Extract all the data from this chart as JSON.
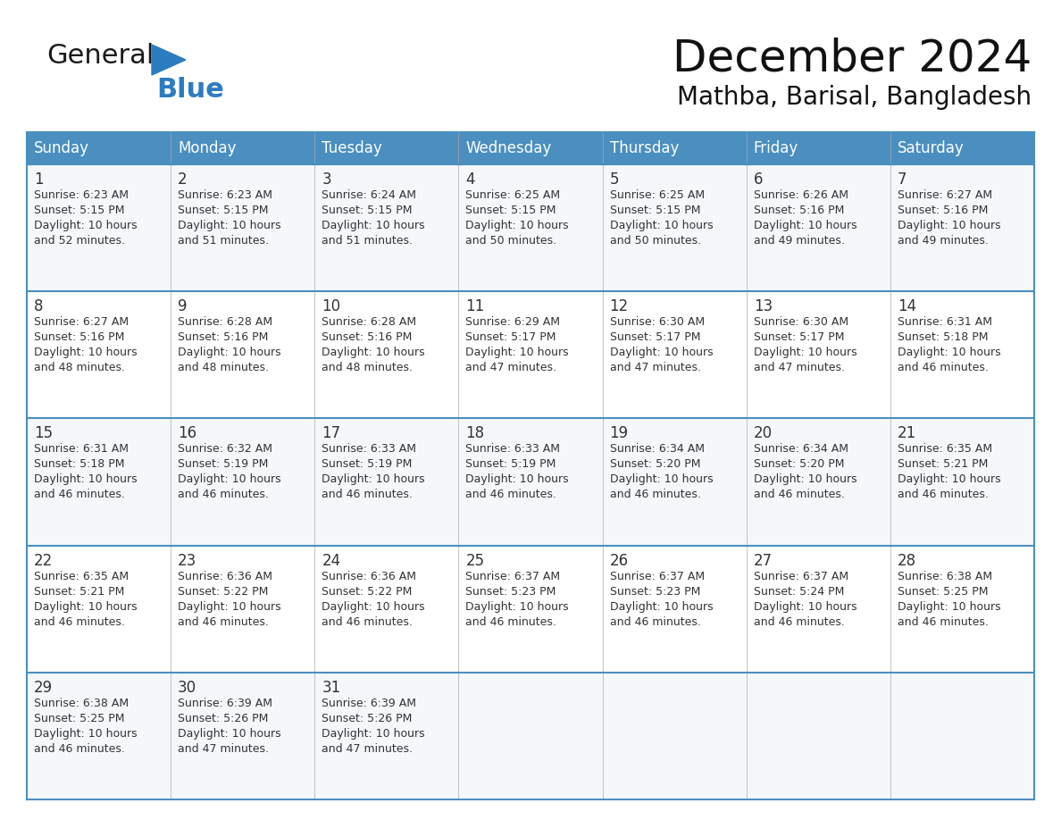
{
  "title": "December 2024",
  "subtitle": "Mathba, Barisal, Bangladesh",
  "header_bg": "#4a8fc0",
  "header_text": "#ffffff",
  "cell_border": "#4a8fc0",
  "day_text_color": "#333333",
  "detail_text_color": "#333333",
  "row_alt_bg": "#f0f4f8",
  "days_of_week": [
    "Sunday",
    "Monday",
    "Tuesday",
    "Wednesday",
    "Thursday",
    "Friday",
    "Saturday"
  ],
  "weeks": [
    [
      {
        "day": "1",
        "sunrise": "6:23 AM",
        "sunset": "5:15 PM",
        "daylight_h": "10 hours",
        "daylight_m": "and 52 minutes."
      },
      {
        "day": "2",
        "sunrise": "6:23 AM",
        "sunset": "5:15 PM",
        "daylight_h": "10 hours",
        "daylight_m": "and 51 minutes."
      },
      {
        "day": "3",
        "sunrise": "6:24 AM",
        "sunset": "5:15 PM",
        "daylight_h": "10 hours",
        "daylight_m": "and 51 minutes."
      },
      {
        "day": "4",
        "sunrise": "6:25 AM",
        "sunset": "5:15 PM",
        "daylight_h": "10 hours",
        "daylight_m": "and 50 minutes."
      },
      {
        "day": "5",
        "sunrise": "6:25 AM",
        "sunset": "5:15 PM",
        "daylight_h": "10 hours",
        "daylight_m": "and 50 minutes."
      },
      {
        "day": "6",
        "sunrise": "6:26 AM",
        "sunset": "5:16 PM",
        "daylight_h": "10 hours",
        "daylight_m": "and 49 minutes."
      },
      {
        "day": "7",
        "sunrise": "6:27 AM",
        "sunset": "5:16 PM",
        "daylight_h": "10 hours",
        "daylight_m": "and 49 minutes."
      }
    ],
    [
      {
        "day": "8",
        "sunrise": "6:27 AM",
        "sunset": "5:16 PM",
        "daylight_h": "10 hours",
        "daylight_m": "and 48 minutes."
      },
      {
        "day": "9",
        "sunrise": "6:28 AM",
        "sunset": "5:16 PM",
        "daylight_h": "10 hours",
        "daylight_m": "and 48 minutes."
      },
      {
        "day": "10",
        "sunrise": "6:28 AM",
        "sunset": "5:16 PM",
        "daylight_h": "10 hours",
        "daylight_m": "and 48 minutes."
      },
      {
        "day": "11",
        "sunrise": "6:29 AM",
        "sunset": "5:17 PM",
        "daylight_h": "10 hours",
        "daylight_m": "and 47 minutes."
      },
      {
        "day": "12",
        "sunrise": "6:30 AM",
        "sunset": "5:17 PM",
        "daylight_h": "10 hours",
        "daylight_m": "and 47 minutes."
      },
      {
        "day": "13",
        "sunrise": "6:30 AM",
        "sunset": "5:17 PM",
        "daylight_h": "10 hours",
        "daylight_m": "and 47 minutes."
      },
      {
        "day": "14",
        "sunrise": "6:31 AM",
        "sunset": "5:18 PM",
        "daylight_h": "10 hours",
        "daylight_m": "and 46 minutes."
      }
    ],
    [
      {
        "day": "15",
        "sunrise": "6:31 AM",
        "sunset": "5:18 PM",
        "daylight_h": "10 hours",
        "daylight_m": "and 46 minutes."
      },
      {
        "day": "16",
        "sunrise": "6:32 AM",
        "sunset": "5:19 PM",
        "daylight_h": "10 hours",
        "daylight_m": "and 46 minutes."
      },
      {
        "day": "17",
        "sunrise": "6:33 AM",
        "sunset": "5:19 PM",
        "daylight_h": "10 hours",
        "daylight_m": "and 46 minutes."
      },
      {
        "day": "18",
        "sunrise": "6:33 AM",
        "sunset": "5:19 PM",
        "daylight_h": "10 hours",
        "daylight_m": "and 46 minutes."
      },
      {
        "day": "19",
        "sunrise": "6:34 AM",
        "sunset": "5:20 PM",
        "daylight_h": "10 hours",
        "daylight_m": "and 46 minutes."
      },
      {
        "day": "20",
        "sunrise": "6:34 AM",
        "sunset": "5:20 PM",
        "daylight_h": "10 hours",
        "daylight_m": "and 46 minutes."
      },
      {
        "day": "21",
        "sunrise": "6:35 AM",
        "sunset": "5:21 PM",
        "daylight_h": "10 hours",
        "daylight_m": "and 46 minutes."
      }
    ],
    [
      {
        "day": "22",
        "sunrise": "6:35 AM",
        "sunset": "5:21 PM",
        "daylight_h": "10 hours",
        "daylight_m": "and 46 minutes."
      },
      {
        "day": "23",
        "sunrise": "6:36 AM",
        "sunset": "5:22 PM",
        "daylight_h": "10 hours",
        "daylight_m": "and 46 minutes."
      },
      {
        "day": "24",
        "sunrise": "6:36 AM",
        "sunset": "5:22 PM",
        "daylight_h": "10 hours",
        "daylight_m": "and 46 minutes."
      },
      {
        "day": "25",
        "sunrise": "6:37 AM",
        "sunset": "5:23 PM",
        "daylight_h": "10 hours",
        "daylight_m": "and 46 minutes."
      },
      {
        "day": "26",
        "sunrise": "6:37 AM",
        "sunset": "5:23 PM",
        "daylight_h": "10 hours",
        "daylight_m": "and 46 minutes."
      },
      {
        "day": "27",
        "sunrise": "6:37 AM",
        "sunset": "5:24 PM",
        "daylight_h": "10 hours",
        "daylight_m": "and 46 minutes."
      },
      {
        "day": "28",
        "sunrise": "6:38 AM",
        "sunset": "5:25 PM",
        "daylight_h": "10 hours",
        "daylight_m": "and 46 minutes."
      }
    ],
    [
      {
        "day": "29",
        "sunrise": "6:38 AM",
        "sunset": "5:25 PM",
        "daylight_h": "10 hours",
        "daylight_m": "and 46 minutes."
      },
      {
        "day": "30",
        "sunrise": "6:39 AM",
        "sunset": "5:26 PM",
        "daylight_h": "10 hours",
        "daylight_m": "and 47 minutes."
      },
      {
        "day": "31",
        "sunrise": "6:39 AM",
        "sunset": "5:26 PM",
        "daylight_h": "10 hours",
        "daylight_m": "and 47 minutes."
      },
      null,
      null,
      null,
      null
    ]
  ],
  "logo_general_color": "#1a1a1a",
  "logo_blue_color": "#2d7cc1",
  "logo_triangle_color": "#2d7cc1",
  "title_fontsize": 36,
  "subtitle_fontsize": 20,
  "header_fontsize": 12,
  "day_num_fontsize": 12,
  "detail_fontsize": 9
}
